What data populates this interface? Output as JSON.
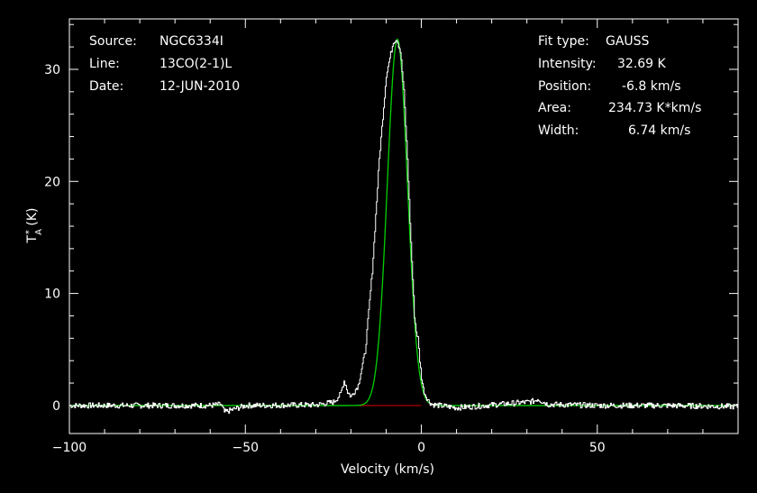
{
  "colors": {
    "background": "#000000",
    "foreground": "#ffffff",
    "fit": "#00d000",
    "baseline": "#c00000"
  },
  "info_left": [
    {
      "label": "Source:",
      "value": "NGC6334I"
    },
    {
      "label": "Line:",
      "value": "13CO(2-1)L"
    },
    {
      "label": "Date:",
      "value": "12-JUN-2010"
    }
  ],
  "info_right": [
    {
      "label": "Fit type:",
      "value": "GAUSS"
    },
    {
      "label": "Intensity:",
      "value": "32.69 K"
    },
    {
      "label": "Position:",
      "value": "-6.8 km/s"
    },
    {
      "label": "Area:",
      "value": "234.73 K*km/s"
    },
    {
      "label": "Width:",
      "value": "6.74 km/s"
    }
  ],
  "chart_data": {
    "type": "line",
    "xlabel": "Velocity (km/s)",
    "ylabel": "T*A (K)",
    "xlim": [
      -100,
      90
    ],
    "ylim": [
      -2.5,
      34.5
    ],
    "xticks": [
      -100,
      -50,
      0,
      50
    ],
    "xtick_labels": [
      "−100",
      "−50",
      "0",
      "50"
    ],
    "yticks": [
      0,
      10,
      20,
      30
    ],
    "ytick_labels": [
      "0",
      "10",
      "20",
      "30"
    ],
    "grid": false,
    "series": [
      {
        "kind": "spectrum",
        "x": [
          -100,
          -80,
          -60,
          -57,
          -56,
          -50,
          -30,
          -25,
          -23,
          -22,
          -21.5,
          -21,
          -20,
          -18,
          -16,
          -14,
          -12,
          -10,
          -8,
          -7,
          -6,
          -5,
          -4,
          -3,
          -2,
          -1.5,
          -1,
          -0.5,
          0,
          0.5,
          1,
          2,
          3,
          5,
          10,
          30,
          32,
          33,
          34,
          36,
          50,
          70,
          90
        ],
        "y": [
          0,
          0,
          0,
          0.1,
          -0.6,
          0,
          0.05,
          0.3,
          1.0,
          2.2,
          1.8,
          1.2,
          0.8,
          1.8,
          4.8,
          12.0,
          22.0,
          29.5,
          32.5,
          32.7,
          31.6,
          28.0,
          22.0,
          14.5,
          8.0,
          6.6,
          6.0,
          4.0,
          2.5,
          1.5,
          1.0,
          0.4,
          0.1,
          0.0,
          -0.2,
          0.3,
          0.4,
          0.6,
          0.4,
          0.1,
          0.0,
          0.0,
          -0.1
        ]
      },
      {
        "kind": "gaussian-fit",
        "amplitude": 32.69,
        "center": -6.8,
        "fwhm": 6.74
      },
      {
        "kind": "baseline",
        "x": [
          -20,
          0
        ],
        "y": [
          0,
          0
        ]
      }
    ]
  }
}
